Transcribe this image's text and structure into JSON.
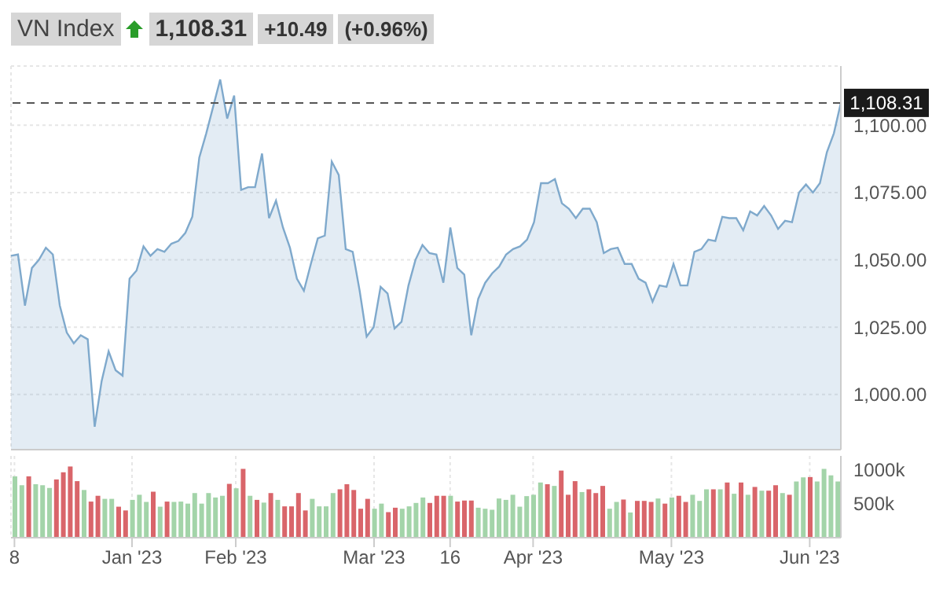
{
  "chart_data": [
    {
      "type": "area",
      "title": "VN Index",
      "annotations": [
        "1,108.31",
        "+10.49",
        "(+0.96%)"
      ],
      "categories": [
        null,
        null,
        null,
        null,
        null,
        null,
        null,
        null,
        null,
        null,
        null,
        null,
        null,
        null,
        null,
        null,
        null,
        null,
        null,
        null,
        null,
        null,
        null,
        null,
        null,
        null,
        null,
        null,
        null,
        null,
        null,
        null,
        null,
        null,
        null,
        null,
        null,
        null,
        null,
        null,
        null,
        null,
        null,
        null,
        null,
        null,
        null,
        null,
        null,
        null,
        null,
        null,
        null,
        null,
        null,
        null,
        null,
        null,
        null,
        null,
        null,
        null,
        null,
        null,
        null,
        null,
        null,
        null,
        null,
        null,
        null,
        null,
        null,
        null,
        null,
        null,
        null,
        null,
        null,
        null,
        null,
        null,
        null,
        null,
        null,
        null,
        null,
        null,
        null,
        null,
        null,
        null,
        null,
        null,
        null,
        null,
        null,
        null,
        null,
        null,
        null,
        null,
        null,
        null,
        null,
        null,
        null,
        null,
        null,
        null,
        null,
        null,
        null,
        null,
        null,
        null,
        null,
        null,
        null,
        null
      ],
      "series": [
        {
          "color": "#7fa9cc",
          "values": [
            1051.5,
            1052,
            1033,
            1047,
            1050,
            1054.5,
            1052,
            1033,
            1023,
            1019,
            1022,
            1020.5,
            988,
            1005,
            1016,
            1009,
            1007,
            1043,
            1046,
            1055,
            1051.5,
            1054,
            1053,
            1056,
            1057,
            1060,
            1066,
            1088,
            1097,
            1107,
            1117,
            1102.5,
            1111,
            1076,
            1077,
            1077,
            1089.5,
            1065.5,
            1072,
            1062,
            1054.5,
            1043,
            1038.5,
            1048.5,
            1058,
            1059,
            1086.5,
            1081.5,
            1054,
            1053,
            1038.5,
            1021.5,
            1025,
            1040,
            1037.5,
            1024.5,
            1027,
            1040.5,
            1050,
            1055.5,
            1052.5,
            1052,
            1041.5,
            1062,
            1047,
            1044.5,
            1022,
            1035.5,
            1041.5,
            1045,
            1047.5,
            1052,
            1054,
            1055,
            1057.5,
            1064,
            1078.5,
            1078.5,
            1080,
            1071,
            1069,
            1065.5,
            1069,
            1069,
            1064,
            1052.5,
            1054,
            1054.5,
            1048.5,
            1048.5,
            1043,
            1041.5,
            1034.5,
            1040.5,
            1040,
            1048.5,
            1040.5,
            1040.5,
            1053,
            1054,
            1057.5,
            1057,
            1066,
            1065.5,
            1065.5,
            1061,
            1068,
            1066.5,
            1070,
            1066.5,
            1061.5,
            1064.5,
            1064,
            1075,
            1078,
            1075,
            1078.5,
            1090,
            1097,
            1108.31
          ]
        }
      ],
      "ylim": [
        979.5,
        1122
      ],
      "yticks": [
        {
          "value": 1000,
          "label": "1,000.00"
        },
        {
          "value": 1025,
          "label": "1,025.00"
        },
        {
          "value": 1050,
          "label": "1,050.00"
        },
        {
          "value": 1075,
          "label": "1,075.00"
        },
        {
          "value": 1100,
          "label": "1,100.00"
        }
      ],
      "ref_lines": [
        {
          "axis": "y",
          "value": 1108.31,
          "label": "1,108.31",
          "line_style": "dashed",
          "color": "#555555"
        }
      ],
      "grid": true,
      "tick_labels": "y"
    },
    {
      "type": "bar",
      "categories": [
        "8",
        null,
        null,
        null,
        null,
        null,
        null,
        null,
        null,
        null,
        null,
        null,
        null,
        null,
        null,
        null,
        null,
        "Jan '23",
        null,
        null,
        null,
        null,
        null,
        null,
        null,
        null,
        null,
        null,
        null,
        null,
        null,
        null,
        "Feb '23",
        null,
        null,
        null,
        null,
        null,
        null,
        null,
        null,
        null,
        null,
        null,
        null,
        null,
        null,
        null,
        null,
        null,
        null,
        null,
        "Mar '23",
        null,
        null,
        null,
        null,
        null,
        null,
        null,
        null,
        null,
        null,
        "16",
        null,
        null,
        null,
        null,
        null,
        null,
        null,
        null,
        null,
        null,
        null,
        "Apr '23",
        null,
        null,
        null,
        null,
        null,
        null,
        null,
        null,
        null,
        null,
        null,
        null,
        null,
        null,
        null,
        null,
        null,
        null,
        null,
        "May '23",
        null,
        null,
        null,
        null,
        null,
        null,
        null,
        null,
        null,
        null,
        null,
        null,
        null,
        null,
        null,
        null,
        null,
        null,
        null,
        "Jun '23",
        null,
        null,
        null,
        null
      ],
      "values": [
        900000,
        770000,
        900000,
        785000,
        770000,
        730000,
        855000,
        960000,
        1045000,
        830000,
        700000,
        530000,
        615000,
        570000,
        570000,
        455000,
        400000,
        555000,
        630000,
        525000,
        675000,
        455000,
        530000,
        525000,
        530000,
        500000,
        655000,
        500000,
        655000,
        590000,
        615000,
        790000,
        725000,
        1010000,
        615000,
        555000,
        515000,
        655000,
        555000,
        460000,
        460000,
        655000,
        400000,
        570000,
        460000,
        460000,
        655000,
        710000,
        785000,
        700000,
        425000,
        570000,
        425000,
        500000,
        375000,
        440000,
        425000,
        460000,
        510000,
        590000,
        510000,
        615000,
        615000,
        615000,
        530000,
        545000,
        545000,
        440000,
        425000,
        410000,
        575000,
        555000,
        630000,
        455000,
        610000,
        630000,
        810000,
        785000,
        760000,
        985000,
        630000,
        830000,
        670000,
        710000,
        655000,
        760000,
        425000,
        525000,
        560000,
        370000,
        540000,
        540000,
        525000,
        575000,
        500000,
        590000,
        615000,
        525000,
        630000,
        540000,
        710000,
        710000,
        710000,
        810000,
        645000,
        810000,
        630000,
        745000,
        690000,
        690000,
        770000,
        655000,
        630000,
        825000,
        885000,
        890000,
        825000,
        1010000,
        915000,
        825000
      ],
      "colors": [
        "#a3d4a9",
        "#a3d4a9",
        "#d9656a",
        "#a3d4a9",
        "#a3d4a9",
        "#a3d4a9",
        "#d9656a",
        "#d9656a",
        "#d9656a",
        "#d9656a",
        "#a3d4a9",
        "#d9656a",
        "#d9656a",
        "#a3d4a9",
        "#a3d4a9",
        "#d9656a",
        "#d9656a",
        "#a3d4a9",
        "#a3d4a9",
        "#a3d4a9",
        "#d9656a",
        "#a3d4a9",
        "#d9656a",
        "#a3d4a9",
        "#a3d4a9",
        "#a3d4a9",
        "#a3d4a9",
        "#a3d4a9",
        "#a3d4a9",
        "#a3d4a9",
        "#a3d4a9",
        "#d9656a",
        "#a3d4a9",
        "#d9656a",
        "#a3d4a9",
        "#d9656a",
        "#a3d4a9",
        "#d9656a",
        "#a3d4a9",
        "#d9656a",
        "#d9656a",
        "#d9656a",
        "#d9656a",
        "#a3d4a9",
        "#a3d4a9",
        "#a3d4a9",
        "#a3d4a9",
        "#d9656a",
        "#d9656a",
        "#d9656a",
        "#d9656a",
        "#d9656a",
        "#a3d4a9",
        "#a3d4a9",
        "#d9656a",
        "#d9656a",
        "#a3d4a9",
        "#a3d4a9",
        "#a3d4a9",
        "#a3d4a9",
        "#d9656a",
        "#d9656a",
        "#d9656a",
        "#a3d4a9",
        "#d9656a",
        "#d9656a",
        "#d9656a",
        "#a3d4a9",
        "#a3d4a9",
        "#a3d4a9",
        "#a3d4a9",
        "#a3d4a9",
        "#a3d4a9",
        "#a3d4a9",
        "#a3d4a9",
        "#a3d4a9",
        "#a3d4a9",
        "#d9656a",
        "#a3d4a9",
        "#d9656a",
        "#d9656a",
        "#d9656a",
        "#a3d4a9",
        "#d9656a",
        "#d9656a",
        "#d9656a",
        "#a3d4a9",
        "#a3d4a9",
        "#d9656a",
        "#a3d4a9",
        "#d9656a",
        "#d9656a",
        "#d9656a",
        "#a3d4a9",
        "#d9656a",
        "#a3d4a9",
        "#d9656a",
        "#d9656a",
        "#a3d4a9",
        "#a3d4a9",
        "#a3d4a9",
        "#d9656a",
        "#a3d4a9",
        "#d9656a",
        "#a3d4a9",
        "#d9656a",
        "#a3d4a9",
        "#d9656a",
        "#a3d4a9",
        "#d9656a",
        "#d9656a",
        "#a3d4a9",
        "#d9656a",
        "#a3d4a9",
        "#a3d4a9",
        "#d9656a",
        "#a3d4a9",
        "#a3d4a9",
        "#a3d4a9",
        "#a3d4a9"
      ],
      "ylim": [
        0,
        1200000
      ],
      "yticks": [
        {
          "value": 500000,
          "label": "500k"
        },
        {
          "value": 1000000,
          "label": "1000k"
        }
      ],
      "grid": "x"
    }
  ]
}
